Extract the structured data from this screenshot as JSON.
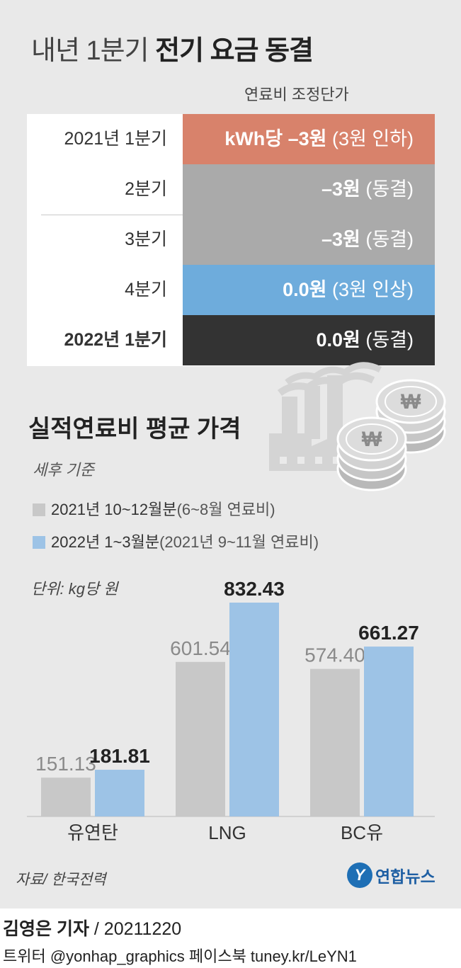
{
  "header": {
    "title_light": "내년 1분기",
    "title_bold": "전기 요금 동결",
    "column_heading": "연료비 조정단가"
  },
  "fee_table": [
    {
      "label": "2021년 1분기",
      "value_bold": "kWh당 –3원",
      "value_note": "(3원 인하)",
      "color": "#d8826b",
      "label_bold": false
    },
    {
      "label": "2분기",
      "value_bold": "–3원",
      "value_note": "(동결)",
      "color": "#aaaaaa",
      "label_bold": false
    },
    {
      "label": "3분기",
      "value_bold": "–3원",
      "value_note": "(동결)",
      "color": "#aaaaaa",
      "label_bold": false
    },
    {
      "label": "4분기",
      "value_bold": "0.0원",
      "value_note": "(3원 인상)",
      "color": "#6eacdc",
      "label_bold": false
    },
    {
      "label": "2022년 1분기",
      "value_bold": "0.0원",
      "value_note": "(동결)",
      "color": "#333333",
      "label_bold": true
    }
  ],
  "decorations": {
    "factory_icon": "factory-icon",
    "coins_icon": "won-coins-icon",
    "coin_symbol": "₩"
  },
  "chart_data": {
    "type": "bar",
    "title": "실적연료비 평균 가격",
    "subtitle": "세후 기준",
    "unit": "단위: kg당 원",
    "categories": [
      "유연탄",
      "LNG",
      "BC유"
    ],
    "series": [
      {
        "name": "2021년 10~12월분",
        "note": "(6~8월 연료비)",
        "values": [
          151.13,
          601.54,
          574.4
        ],
        "labels": [
          "151.13",
          "601.54",
          "574.40"
        ],
        "color": "#c8c8c8",
        "label_color": "#8a8a8a"
      },
      {
        "name": "2022년 1~3월분",
        "note": "(2021년 9~11월 연료비)",
        "values": [
          181.81,
          832.43,
          661.27
        ],
        "labels": [
          "181.81",
          "832.43",
          "661.27"
        ],
        "color": "#9dc3e6",
        "label_color": "#222222"
      }
    ],
    "ylim": [
      0,
      832.43
    ],
    "grid": false,
    "legend_position": "top-left"
  },
  "footer": {
    "source": "자료/ 한국전력",
    "logo_mark": "Y",
    "logo_text": "연합뉴스",
    "reporter": "김영은 기자",
    "date": " / 20211220",
    "social": "트위터 @yonhap_graphics  페이스북 tuney.kr/LeYN1"
  }
}
